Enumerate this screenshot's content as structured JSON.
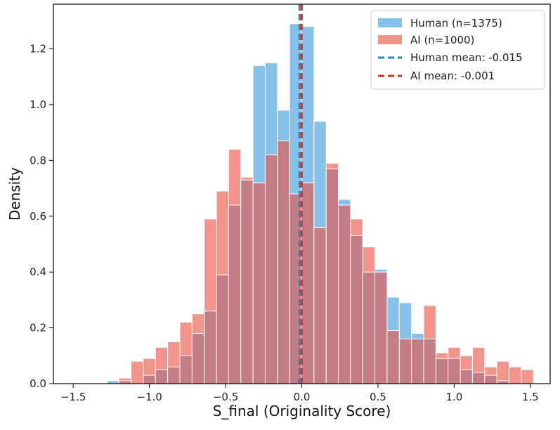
{
  "chart_data": {
    "type": "bar",
    "title": "",
    "xlabel": "S_final (Originality Score)",
    "ylabel": "Density",
    "xlim": [
      -1.63,
      1.63
    ],
    "ylim": [
      0,
      1.36
    ],
    "xticks": [
      -1.5,
      -1.0,
      -0.5,
      0.0,
      0.5,
      1.0,
      1.5
    ],
    "xtick_labels": [
      "−1.5",
      "−1.0",
      "−0.5",
      "0.0",
      "0.5",
      "1.0",
      "1.5"
    ],
    "yticks": [
      0.0,
      0.2,
      0.4,
      0.6,
      0.8,
      1.0,
      1.2
    ],
    "ytick_labels": [
      "0.0",
      "0.2",
      "0.4",
      "0.6",
      "0.8",
      "1.0",
      "1.2"
    ],
    "grid": false,
    "legend_position": "top-right",
    "bin_edges": [
      -1.28,
      -1.2,
      -1.12,
      -1.04,
      -0.96,
      -0.88,
      -0.8,
      -0.72,
      -0.64,
      -0.56,
      -0.48,
      -0.4,
      -0.32,
      -0.24,
      -0.16,
      -0.08,
      0.0,
      0.08,
      0.16,
      0.24,
      0.32,
      0.4,
      0.48,
      0.56,
      0.64,
      0.72,
      0.8,
      0.88,
      0.96,
      1.04,
      1.12,
      1.2,
      1.28,
      1.36,
      1.44,
      1.52
    ],
    "series": [
      {
        "name": "Human (n=1375)",
        "color": "#85c1e9",
        "values": [
          0.01,
          0.01,
          0.0,
          0.03,
          0.05,
          0.06,
          0.1,
          0.18,
          0.26,
          0.39,
          0.64,
          0.73,
          1.14,
          1.15,
          0.98,
          1.29,
          1.28,
          0.94,
          0.77,
          0.66,
          0.53,
          0.4,
          0.41,
          0.31,
          0.29,
          0.18,
          0.16,
          0.09,
          0.09,
          0.05,
          0.04,
          0.03,
          0.01,
          0.0,
          0.0
        ]
      },
      {
        "name": "AI (n=1000)",
        "color": "#f1948a",
        "values": [
          0.0,
          0.02,
          0.08,
          0.09,
          0.13,
          0.15,
          0.22,
          0.25,
          0.59,
          0.69,
          0.84,
          0.74,
          0.72,
          0.82,
          0.87,
          0.68,
          0.72,
          0.56,
          0.79,
          0.64,
          0.59,
          0.49,
          0.4,
          0.19,
          0.16,
          0.16,
          0.28,
          0.11,
          0.13,
          0.1,
          0.13,
          0.06,
          0.08,
          0.06,
          0.05
        ]
      }
    ],
    "overlap_color": "#c47d84",
    "mean_lines": [
      {
        "name": "Human mean: -0.015",
        "value": -0.015,
        "color": "#2e86c1"
      },
      {
        "name": "AI mean: -0.001",
        "value": -0.001,
        "color": "#c0392b"
      }
    ]
  }
}
